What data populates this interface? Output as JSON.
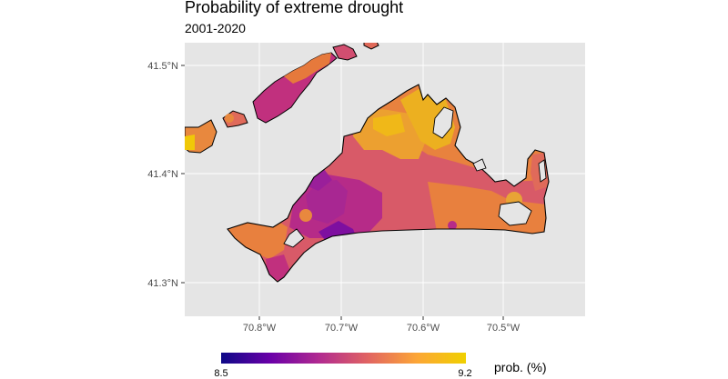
{
  "map": {
    "title": "Probability of extreme drought",
    "subtitle": "2001-2020",
    "y_axis_ticks": [
      "41.5°N",
      "41.4°N",
      "41.3°N"
    ],
    "x_axis_ticks": [
      "70.8°W",
      "70.7°W",
      "70.6°W",
      "70.5°W"
    ],
    "panel_background": "#e5e5e5",
    "land_outline_color": "#000000",
    "legend": {
      "title": "prob. (%)",
      "min_label": "8.5",
      "max_label": "9.2",
      "min_value": 8.5,
      "max_value": 9.2,
      "colorscale": [
        "#0d0887",
        "#6a00a8",
        "#b12a90",
        "#e16462",
        "#fca636",
        "#f0f921"
      ]
    }
  }
}
